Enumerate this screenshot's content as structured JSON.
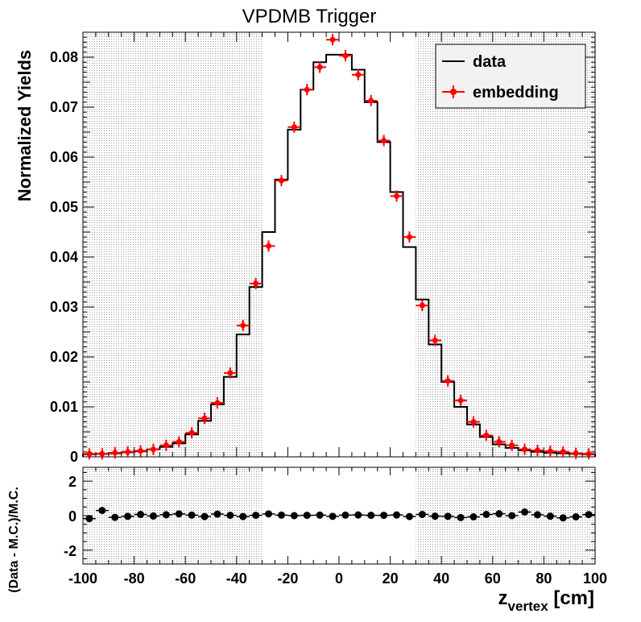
{
  "chart_data": [
    {
      "type": "histogram",
      "title": "VPDMB Trigger",
      "ylabel": "Normalized Yields",
      "xlabel": "z",
      "xlabel_sub": "vertex",
      "xlabel_unit": " [cm]",
      "xlim": [
        -100,
        100
      ],
      "ylim": [
        0,
        0.085
      ],
      "bin_width": 5,
      "shaded_regions": [
        [
          -100,
          -30
        ],
        [
          30,
          100
        ]
      ],
      "x_ticks": [
        -100,
        -80,
        -60,
        -40,
        -20,
        0,
        20,
        40,
        60,
        80,
        100
      ],
      "y_ticks": [
        0,
        0.01,
        0.02,
        0.03,
        0.04,
        0.05,
        0.06,
        0.07,
        0.08
      ],
      "y_tick_labels": [
        "0",
        "0.01",
        "0.02",
        "0.03",
        "0.04",
        "0.05",
        "0.06",
        "0.07",
        "0.08"
      ],
      "legend": {
        "placement": "top-right",
        "entries": [
          "data",
          "embedding"
        ]
      },
      "x_centers": [
        -97.5,
        -92.5,
        -87.5,
        -82.5,
        -77.5,
        -72.5,
        -67.5,
        -62.5,
        -57.5,
        -52.5,
        -47.5,
        -42.5,
        -37.5,
        -32.5,
        -27.5,
        -22.5,
        -17.5,
        -12.5,
        -7.5,
        -2.5,
        2.5,
        7.5,
        12.5,
        17.5,
        22.5,
        27.5,
        32.5,
        37.5,
        42.5,
        47.5,
        52.5,
        57.5,
        62.5,
        67.5,
        72.5,
        77.5,
        82.5,
        87.5,
        92.5,
        97.5
      ],
      "series": [
        {
          "name": "data",
          "style": "step",
          "color": "#000000",
          "values": [
            0.0005,
            0.0006,
            0.0007,
            0.0009,
            0.0011,
            0.0015,
            0.002,
            0.0027,
            0.0045,
            0.0072,
            0.0105,
            0.016,
            0.0245,
            0.034,
            0.045,
            0.0555,
            0.0655,
            0.0735,
            0.079,
            0.0805,
            0.0805,
            0.0775,
            0.071,
            0.063,
            0.053,
            0.042,
            0.0315,
            0.0225,
            0.015,
            0.01,
            0.0065,
            0.004,
            0.0025,
            0.0018,
            0.0013,
            0.001,
            0.0008,
            0.0007,
            0.0006,
            0.0005
          ]
        },
        {
          "name": "embedding",
          "style": "points",
          "color": "#ff0000",
          "values": [
            0.0006,
            0.0006,
            0.0008,
            0.001,
            0.0012,
            0.0015,
            0.0023,
            0.003,
            0.0048,
            0.0077,
            0.0108,
            0.0168,
            0.0263,
            0.0347,
            0.0422,
            0.0553,
            0.066,
            0.0735,
            0.078,
            0.0835,
            0.0803,
            0.0765,
            0.0713,
            0.0633,
            0.0522,
            0.044,
            0.0303,
            0.0233,
            0.0152,
            0.0113,
            0.007,
            0.0043,
            0.003,
            0.0023,
            0.0015,
            0.0013,
            0.0011,
            0.001,
            0.0007,
            0.0006
          ]
        }
      ]
    },
    {
      "type": "scatter",
      "ylabel": "(Data - M.C.)/M.C.",
      "xlim": [
        -100,
        100
      ],
      "ylim": [
        -2.8,
        2.8
      ],
      "y_ticks": [
        -2,
        0,
        2
      ],
      "y_tick_labels": [
        "-2",
        "0",
        "2"
      ],
      "shaded_regions": [
        [
          -100,
          -30
        ],
        [
          30,
          100
        ]
      ],
      "series": [
        {
          "name": "",
          "color": "#000000",
          "values": [
            -0.17,
            0.3,
            -0.1,
            -0.04,
            0.07,
            -0.02,
            0.05,
            0.1,
            0.03,
            -0.05,
            0.09,
            0.02,
            -0.05,
            0.02,
            0.1,
            0.03,
            0.0,
            0.02,
            0.03,
            -0.04,
            0.03,
            0.04,
            0.02,
            0.02,
            0.04,
            -0.05,
            0.07,
            -0.03,
            -0.04,
            -0.11,
            -0.07,
            0.07,
            0.11,
            0.0,
            0.21,
            0.05,
            -0.03,
            -0.13,
            -0.07,
            0.06
          ]
        }
      ]
    }
  ]
}
